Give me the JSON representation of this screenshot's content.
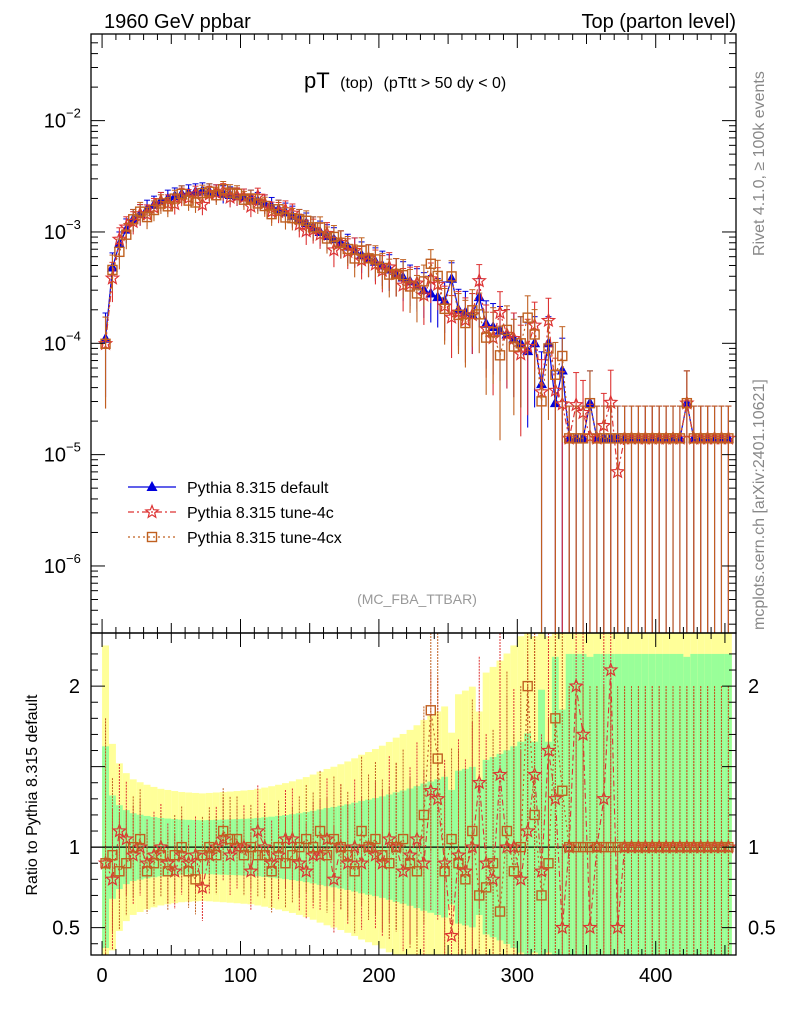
{
  "header": {
    "left": "1960 GeV ppbar",
    "right": "Top (parton level)"
  },
  "side_labels": {
    "rivet": "Rivet 4.1.0, ≥ 100k events",
    "mcplots": "mcplots.cern.ch [arXiv:2401.10621]"
  },
  "chart_data": {
    "type": "line",
    "title_main": "pT",
    "title_sub": "(top)",
    "title_cut": "(pTtt > 50 dy < 0)",
    "watermark": "(MC_FBA_TTBAR)",
    "xlim": [
      -8,
      458
    ],
    "ylim_log": [
      2.5e-07,
      0.06
    ],
    "ratio_ylim": [
      0.33,
      2.33
    ],
    "ratio_ylabel": "Ratio to Pythia 8.315 default",
    "y_tick_labels": [
      {
        "base": "10",
        "exp": "−2",
        "value": 0.01
      },
      {
        "base": "10",
        "exp": "−3",
        "value": 0.001
      },
      {
        "base": "10",
        "exp": "−4",
        "value": 0.0001
      },
      {
        "base": "10",
        "exp": "−5",
        "value": 1e-05
      },
      {
        "base": "10",
        "exp": "−6",
        "value": 1e-06
      }
    ],
    "ratio_tick_labels": [
      {
        "label": "2",
        "value": 2
      },
      {
        "label": "1",
        "value": 1
      },
      {
        "label": "0.5",
        "value": 0.5
      }
    ],
    "x_tick_labels": [
      {
        "label": "0",
        "value": 0
      },
      {
        "label": "100",
        "value": 100
      },
      {
        "label": "200",
        "value": 200
      },
      {
        "label": "300",
        "value": 300
      },
      {
        "label": "400",
        "value": 400
      }
    ],
    "x": [
      2.5,
      7.5,
      12.5,
      17.5,
      22.5,
      27.5,
      32.5,
      37.5,
      42.5,
      47.5,
      52.5,
      57.5,
      62.5,
      67.5,
      72.5,
      77.5,
      82.5,
      87.5,
      92.5,
      97.5,
      102.5,
      107.5,
      112.5,
      117.5,
      122.5,
      127.5,
      132.5,
      137.5,
      142.5,
      147.5,
      152.5,
      157.5,
      162.5,
      167.5,
      172.5,
      177.5,
      182.5,
      187.5,
      192.5,
      197.5,
      202.5,
      207.5,
      212.5,
      217.5,
      222.5,
      227.5,
      232.5,
      237.5,
      242.5,
      247.5,
      252.5,
      257.5,
      262.5,
      267.5,
      272.5,
      277.5,
      282.5,
      287.5,
      292.5,
      297.5,
      302.5,
      307.5,
      312.5,
      317.5,
      322.5,
      327.5,
      332.5,
      337.5,
      342.5,
      347.5,
      352.5,
      357.5,
      362.5,
      367.5,
      372.5,
      377.5,
      382.5,
      387.5,
      392.5,
      397.5,
      402.5,
      407.5,
      412.5,
      417.5,
      422.5,
      427.5,
      432.5,
      437.5,
      442.5,
      447.5,
      452.5
    ],
    "series": [
      {
        "name": "Pythia 8.315 default",
        "color": "#0000dd",
        "marker": "triangle",
        "dash": "",
        "values": [
          0.00011,
          0.00048,
          0.00078,
          0.00105,
          0.0013,
          0.00145,
          0.0016,
          0.00175,
          0.0019,
          0.002,
          0.0021,
          0.0022,
          0.00225,
          0.0023,
          0.00235,
          0.0023,
          0.00225,
          0.0022,
          0.00215,
          0.0021,
          0.00205,
          0.002,
          0.0019,
          0.0018,
          0.0017,
          0.0016,
          0.0015,
          0.0014,
          0.0013,
          0.0012,
          0.0011,
          0.001,
          0.00092,
          0.00086,
          0.0008,
          0.00074,
          0.00068,
          0.00062,
          0.00058,
          0.00054,
          0.0005,
          0.00046,
          0.00042,
          0.00039,
          0.00036,
          0.00033,
          0.0003,
          0.00028,
          0.00026,
          0.00024,
          0.00038,
          0.0002,
          0.00019,
          0.00018,
          0.00026,
          0.00015,
          0.00014,
          0.00013,
          0.00012,
          0.00011,
          0.0001,
          8.5e-05,
          0.0001,
          4.3e-05,
          0.0001,
          2.9e-05,
          5.7e-05,
          1.4e-05,
          1.4e-05,
          1.4e-05,
          2.9e-05,
          1.4e-05,
          1.4e-05,
          1.4e-05,
          1.4e-05,
          1.4e-05,
          1.4e-05,
          1.4e-05,
          1.4e-05,
          1.4e-05,
          1.4e-05,
          1.4e-05,
          1.4e-05,
          1.4e-05,
          2.9e-05,
          1.4e-05,
          1.4e-05,
          1.4e-05,
          1.4e-05,
          1.4e-05,
          1.4e-05
        ]
      },
      {
        "name": "Pythia 8.315 tune-4c",
        "color": "#dd3333",
        "marker": "star",
        "dash": "6,3,2,3",
        "ratios": [
          0.9,
          0.8,
          1.1,
          1.05,
          0.95,
          1.0,
          0.9,
          0.95,
          1.0,
          0.9,
          0.85,
          0.95,
          0.9,
          0.95,
          0.75,
          0.95,
          1.0,
          1.05,
          0.95,
          1.0,
          1.0,
          0.85,
          1.1,
          1.0,
          0.9,
          0.95,
          1.05,
          1.05,
          0.9,
          0.85,
          0.95,
          0.95,
          1.05,
          0.8,
          1.0,
          0.9,
          1.0,
          0.9,
          1.0,
          0.95,
          0.9,
          1.05,
          1.0,
          0.85,
          0.95,
          1.05,
          0.9,
          1.35,
          1.3,
          0.9,
          0.45,
          0.95,
          0.85,
          1.0,
          1.4,
          0.9,
          0.8,
          1.45,
          1.0,
          1.0,
          0.8,
          1.1,
          1.45,
          0.85,
          1.6,
          1.3,
          0.5,
          1.0,
          2.0,
          1.7,
          0.5,
          1.0,
          1.3,
          2.1,
          0.5,
          1.0,
          1.0,
          1.0,
          1.0,
          1.0,
          1.0,
          1.0,
          1.0,
          1.0,
          1.0,
          1.0,
          1.0,
          1.0,
          1.0,
          1.0,
          1.0
        ]
      },
      {
        "name": "Pythia 8.315 tune-4cx",
        "color": "#c06020",
        "marker": "square",
        "dash": "2,3",
        "ratios": [
          0.9,
          0.95,
          0.85,
          0.9,
          1.0,
          1.05,
          0.85,
          0.9,
          0.95,
          0.85,
          0.95,
          1.0,
          0.85,
          0.8,
          0.95,
          1.0,
          0.95,
          1.1,
          1.05,
          1.05,
          0.95,
          1.0,
          0.95,
          0.95,
          0.85,
          1.0,
          0.9,
          0.95,
          1.0,
          1.05,
          1.0,
          1.1,
          0.95,
          1.05,
          1.0,
          0.95,
          0.85,
          1.1,
          1.0,
          1.05,
          0.95,
          0.9,
          1.0,
          1.05,
          0.9,
          0.85,
          1.2,
          1.85,
          1.55,
          0.85,
          1.05,
          0.9,
          0.8,
          1.1,
          0.7,
          0.75,
          0.9,
          0.6,
          1.1,
          0.85,
          1.0,
          2.0,
          1.2,
          0.7,
          0.9,
          1.8,
          1.35,
          1.0,
          1.0,
          1.0,
          1.0,
          1.0,
          1.0,
          1.0,
          1.0,
          1.0,
          1.0,
          1.0,
          1.0,
          1.0,
          1.0,
          1.0,
          1.0,
          1.0,
          1.0,
          1.0,
          1.0,
          1.0,
          1.0,
          1.0,
          1.0
        ]
      }
    ],
    "bands": {
      "inner_color": "#99ff99",
      "outer_color": "#ffff99"
    }
  }
}
